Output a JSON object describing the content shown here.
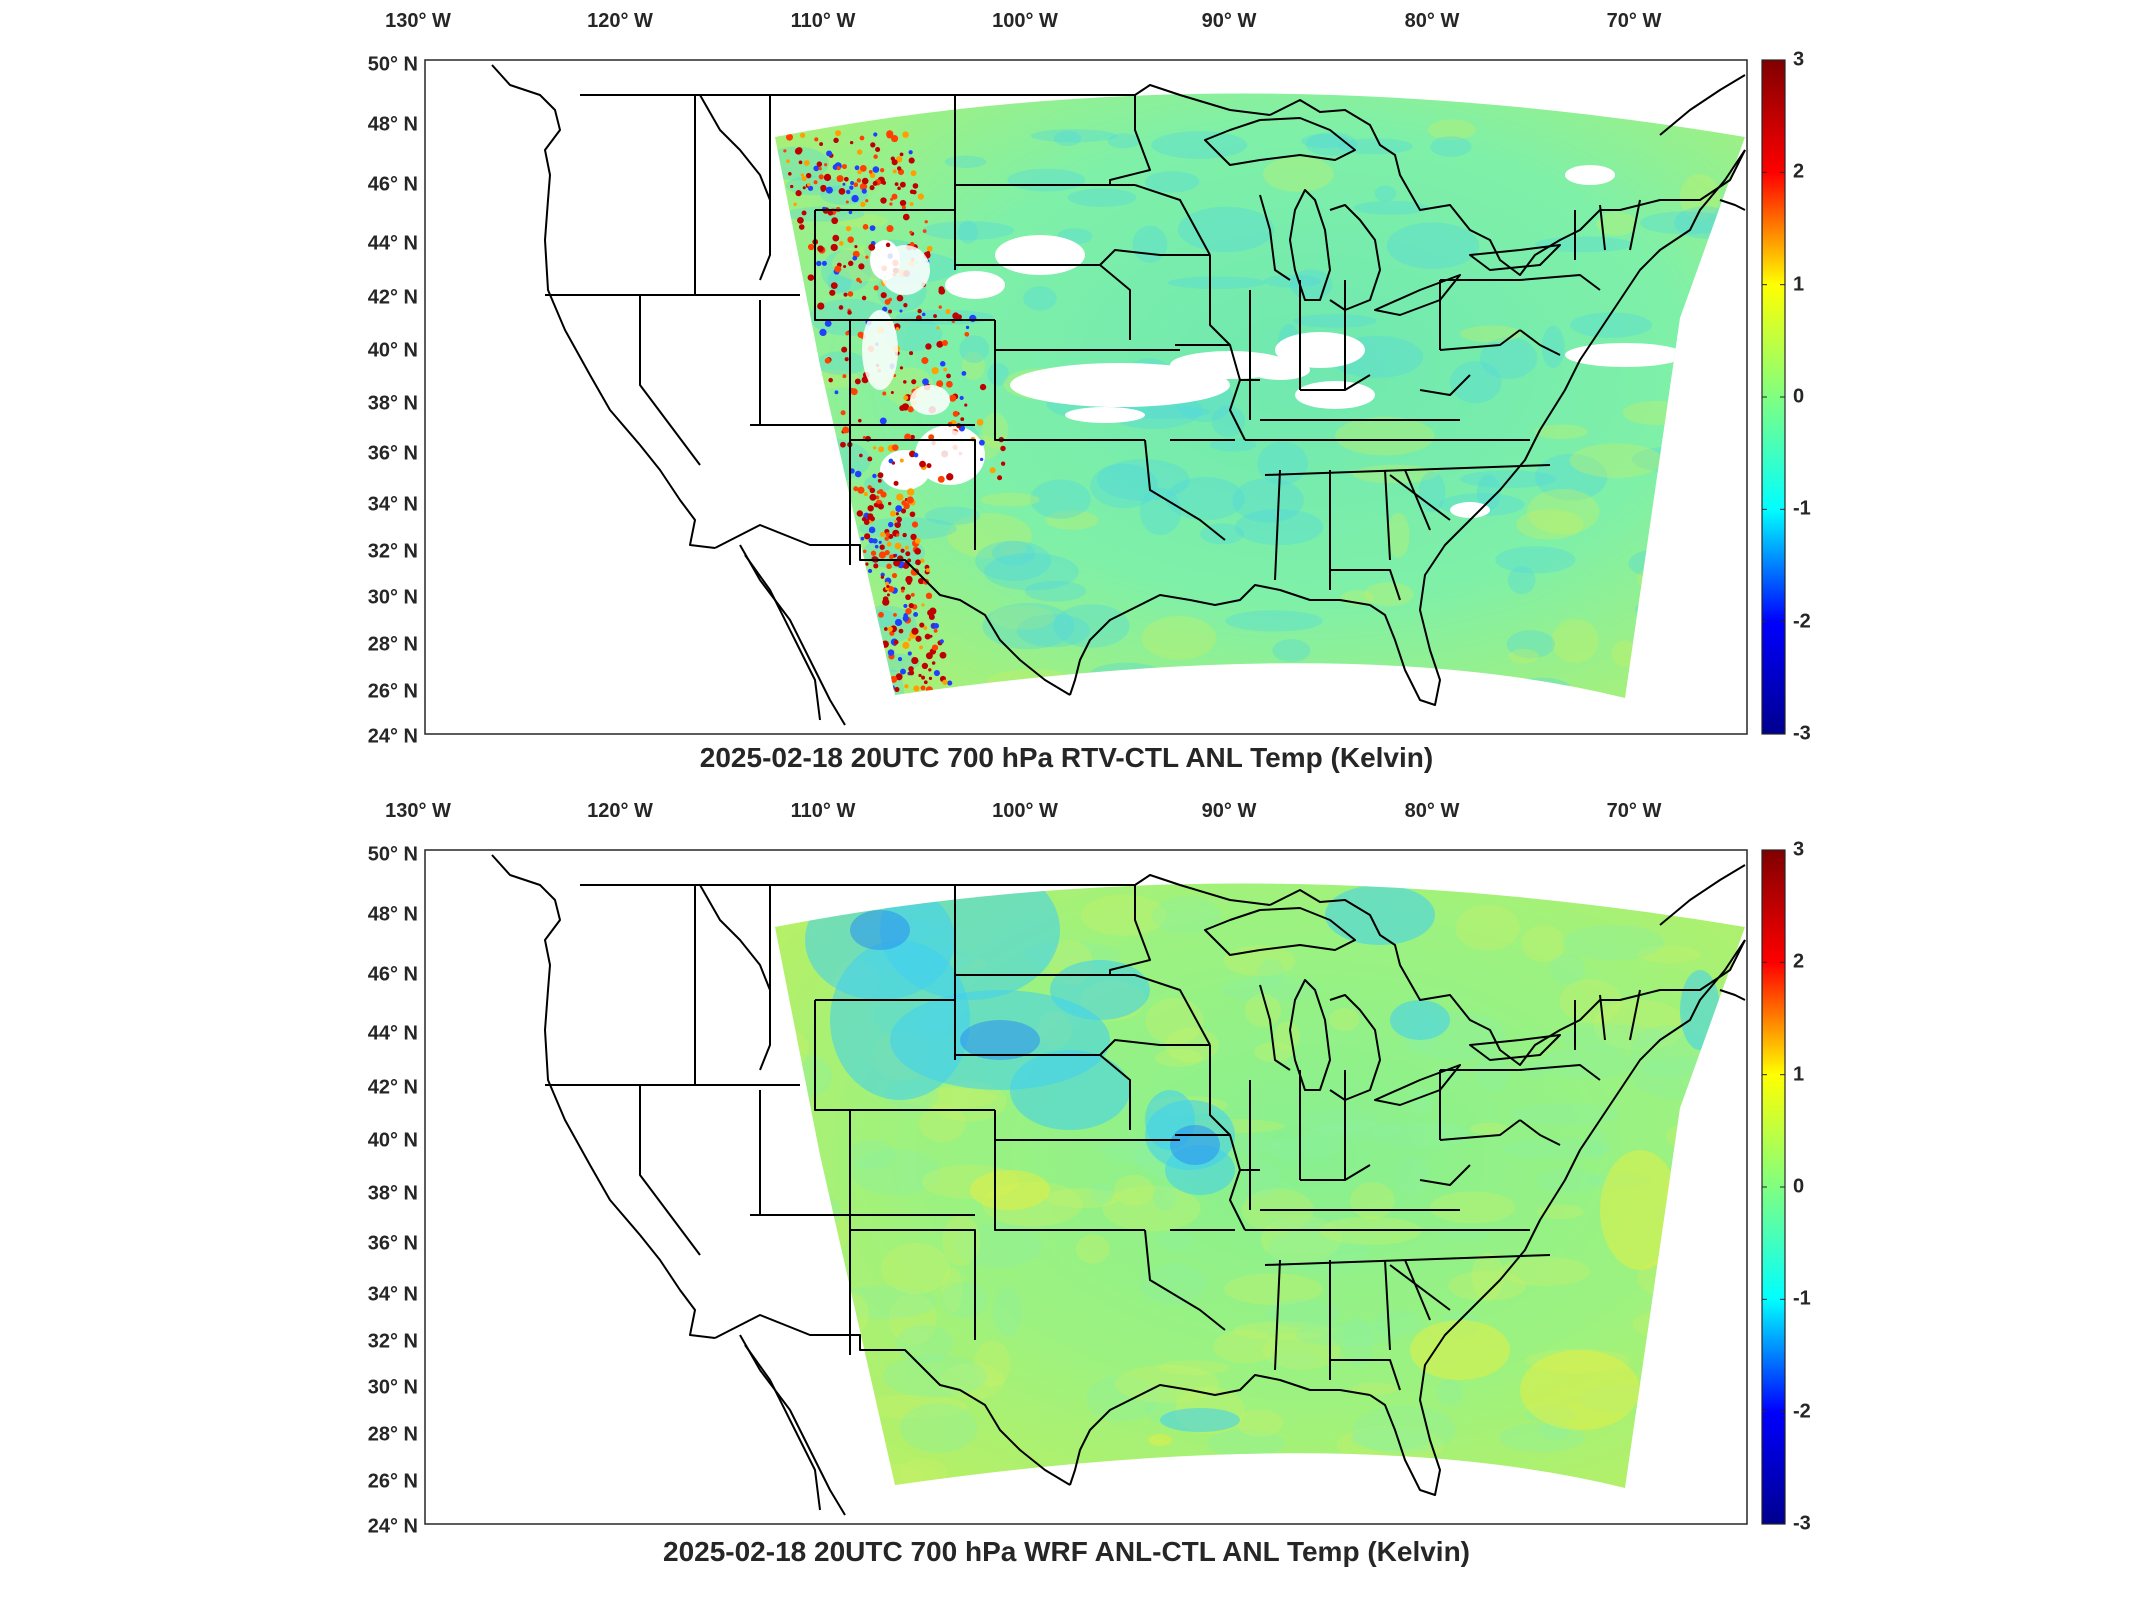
{
  "panels": [
    {
      "title": "2025-02-18 20UTC 700 hPa RTV-CTL ANL Temp (Kelvin)",
      "variant": "rtv"
    },
    {
      "title": "2025-02-18 20UTC 700 hPa WRF ANL-CTL ANL Temp (Kelvin)",
      "variant": "wrf"
    }
  ],
  "lon_labels": [
    "130° W",
    "120° W",
    "110° W",
    "100° W",
    "90° W",
    "80° W",
    "70° W"
  ],
  "lat_labels": [
    "50° N",
    "48° N",
    "46° N",
    "44° N",
    "42° N",
    "40° N",
    "38° N",
    "36° N",
    "34° N",
    "32° N",
    "30° N",
    "28° N",
    "26° N",
    "24° N"
  ],
  "colorbar": {
    "ticks": [
      "3",
      "2",
      "1",
      "0",
      "-1",
      "-2",
      "-3"
    ],
    "range": [
      -3,
      3
    ],
    "colormap": "jet",
    "colors": [
      "#00008f",
      "#0000ff",
      "#00ffff",
      "#80ff80",
      "#ffff00",
      "#ff0000",
      "#800000"
    ]
  },
  "map": {
    "projection": "lambert-conformal",
    "coastline_color": "#000000",
    "missing_data_color": "#ffffff"
  }
}
